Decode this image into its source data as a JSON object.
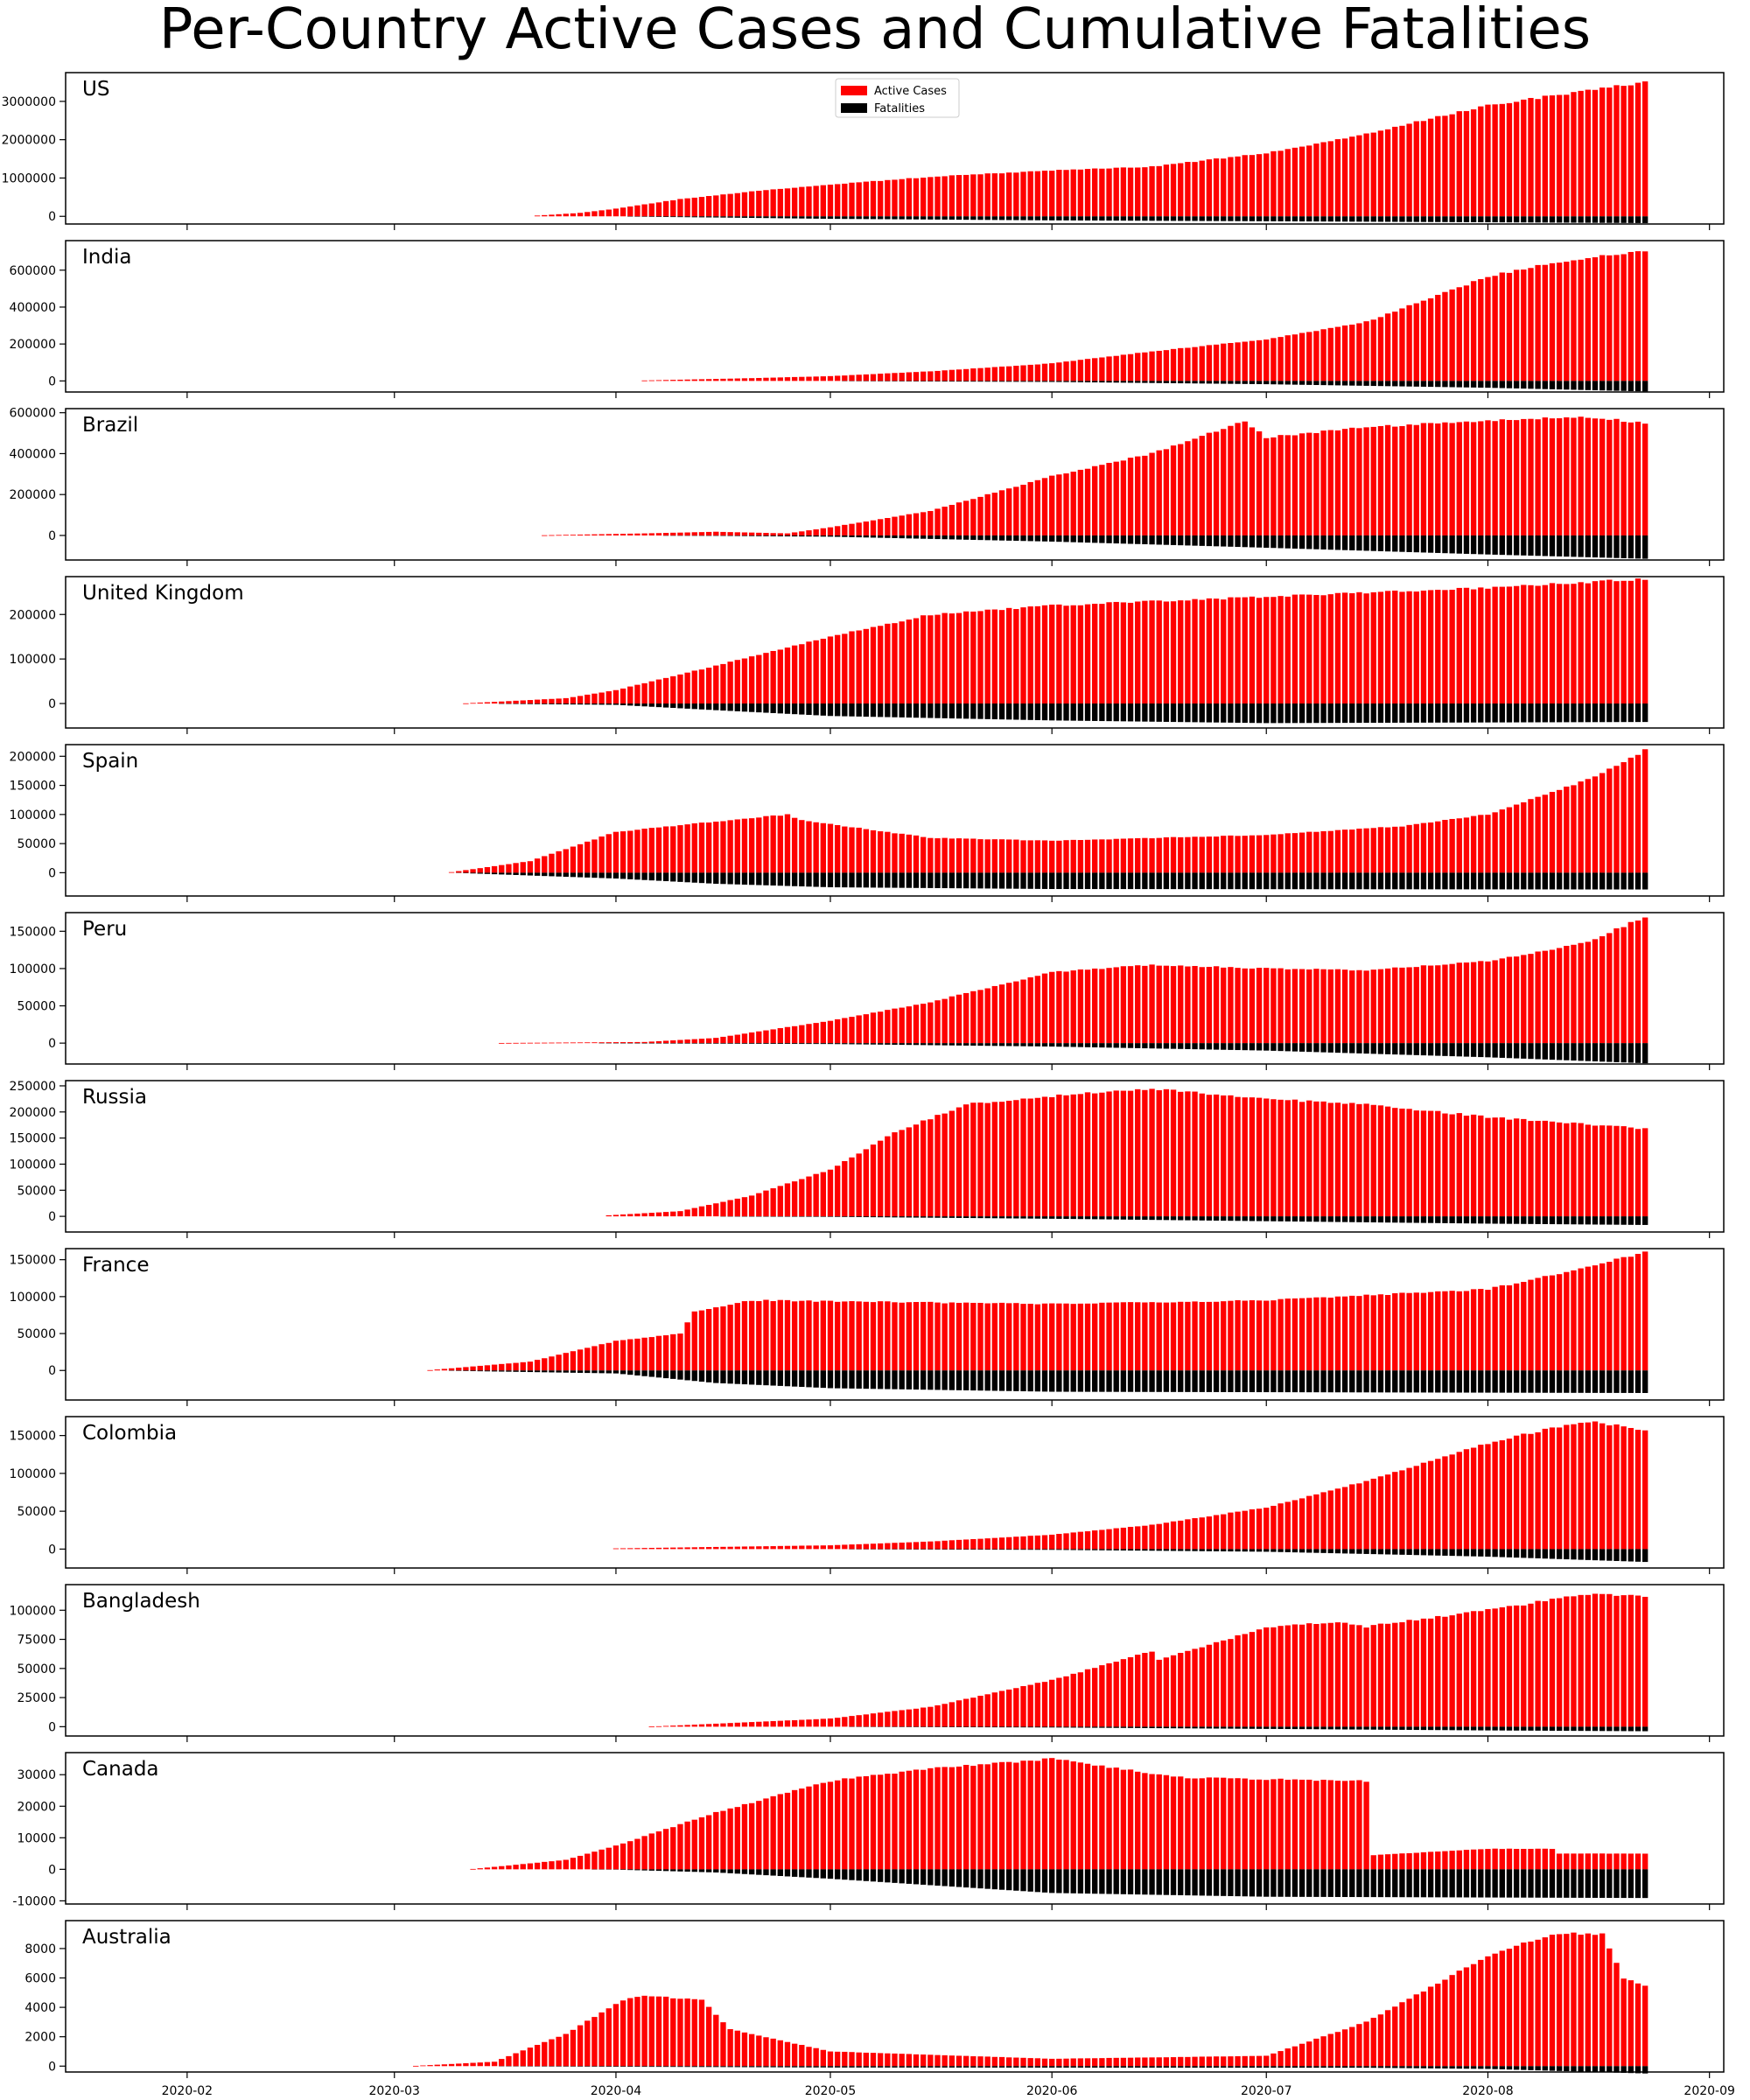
{
  "figure_title": "Per-Country Active Cases and Cumulative Fatalities",
  "colors": {
    "active": "#ff0000",
    "fatal": "#000000",
    "frame": "#000000"
  },
  "chart_data": {
    "type": "bar",
    "layout": "stacked-subplots, shared x axis",
    "x_start": "2020-01-22",
    "x_end": "2020-08-23",
    "xlim": [
      "2020-01-15",
      "2020-09-03"
    ],
    "x_ticks": [
      "2020-02",
      "2020-03",
      "2020-04",
      "2020-05",
      "2020-06",
      "2020-07",
      "2020-08",
      "2020-09"
    ],
    "legend": {
      "location": "top-center of first panel",
      "entries": [
        "Active Cases",
        "Fatalities"
      ]
    },
    "panels": [
      {
        "name": "US",
        "ylim": [
          -200000,
          3750000
        ],
        "yticks": [
          0,
          1000000,
          2000000,
          3000000
        ],
        "start": "2020-03-21",
        "active": [
          [
            "2020-03-21",
            20000
          ],
          [
            "2020-03-27",
            90000
          ],
          [
            "2020-04-01",
            200000
          ],
          [
            "2020-04-10",
            450000
          ],
          [
            "2020-04-20",
            650000
          ],
          [
            "2020-05-01",
            830000
          ],
          [
            "2020-05-15",
            1030000
          ],
          [
            "2020-06-01",
            1200000
          ],
          [
            "2020-06-15",
            1300000
          ],
          [
            "2020-07-01",
            1650000
          ],
          [
            "2020-07-15",
            2150000
          ],
          [
            "2020-08-01",
            2900000
          ],
          [
            "2020-08-23",
            3500000
          ]
        ],
        "fatal": [
          [
            "2020-03-21",
            300
          ],
          [
            "2020-04-01",
            5000
          ],
          [
            "2020-04-15",
            30000
          ],
          [
            "2020-05-01",
            65000
          ],
          [
            "2020-06-01",
            105000
          ],
          [
            "2020-07-01",
            128000
          ],
          [
            "2020-08-01",
            155000
          ],
          [
            "2020-08-23",
            176000
          ]
        ]
      },
      {
        "name": "India",
        "ylim": [
          -60000,
          760000
        ],
        "yticks": [
          0,
          200000,
          400000,
          600000
        ],
        "start": "2020-04-05",
        "active": [
          [
            "2020-04-05",
            2500
          ],
          [
            "2020-04-20",
            15000
          ],
          [
            "2020-05-01",
            26000
          ],
          [
            "2020-05-15",
            52000
          ],
          [
            "2020-06-01",
            95000
          ],
          [
            "2020-06-15",
            160000
          ],
          [
            "2020-07-01",
            225000
          ],
          [
            "2020-07-15",
            320000
          ],
          [
            "2020-08-01",
            565000
          ],
          [
            "2020-08-10",
            640000
          ],
          [
            "2020-08-23",
            705000
          ]
        ],
        "fatal": [
          [
            "2020-04-05",
            100
          ],
          [
            "2020-05-01",
            1200
          ],
          [
            "2020-06-01",
            5400
          ],
          [
            "2020-07-01",
            17800
          ],
          [
            "2020-08-01",
            37000
          ],
          [
            "2020-08-23",
            57000
          ]
        ]
      },
      {
        "name": "Brazil",
        "ylim": [
          -120000,
          620000
        ],
        "yticks": [
          0,
          200000,
          400000,
          600000
        ],
        "start": "2020-03-22",
        "active": [
          [
            "2020-03-22",
            1000
          ],
          [
            "2020-04-05",
            10000
          ],
          [
            "2020-04-15",
            18000
          ],
          [
            "2020-04-25",
            10000
          ],
          [
            "2020-05-01",
            40000
          ],
          [
            "2020-05-15",
            120000
          ],
          [
            "2020-06-01",
            290000
          ],
          [
            "2020-06-15",
            400000
          ],
          [
            "2020-06-28",
            560000
          ],
          [
            "2020-07-01",
            480000
          ],
          [
            "2020-07-15",
            530000
          ],
          [
            "2020-08-01",
            560000
          ],
          [
            "2020-08-15",
            580000
          ],
          [
            "2020-08-23",
            550000
          ]
        ],
        "fatal": [
          [
            "2020-03-22",
            20
          ],
          [
            "2020-04-15",
            1900
          ],
          [
            "2020-05-01",
            6000
          ],
          [
            "2020-06-01",
            30000
          ],
          [
            "2020-07-01",
            60000
          ],
          [
            "2020-08-01",
            93000
          ],
          [
            "2020-08-23",
            114000
          ]
        ]
      },
      {
        "name": "United Kingdom",
        "ylim": [
          -55000,
          285000
        ],
        "yticks": [
          0,
          100000,
          200000
        ],
        "start": "2020-03-11",
        "active": [
          [
            "2020-03-11",
            400
          ],
          [
            "2020-03-25",
            12000
          ],
          [
            "2020-04-01",
            30000
          ],
          [
            "2020-04-15",
            85000
          ],
          [
            "2020-05-01",
            150000
          ],
          [
            "2020-05-15",
            200000
          ],
          [
            "2020-06-01",
            220000
          ],
          [
            "2020-07-01",
            240000
          ],
          [
            "2020-08-01",
            260000
          ],
          [
            "2020-08-23",
            280000
          ]
        ],
        "fatal": [
          [
            "2020-03-11",
            10
          ],
          [
            "2020-04-01",
            3000
          ],
          [
            "2020-04-15",
            15000
          ],
          [
            "2020-05-01",
            28000
          ],
          [
            "2020-06-01",
            38000
          ],
          [
            "2020-07-01",
            44000
          ],
          [
            "2020-08-23",
            41500
          ]
        ]
      },
      {
        "name": "Spain",
        "ylim": [
          -40000,
          220000
        ],
        "yticks": [
          0,
          50000,
          100000,
          150000,
          200000
        ],
        "start": "2020-03-09",
        "active": [
          [
            "2020-03-09",
            1000
          ],
          [
            "2020-03-20",
            20000
          ],
          [
            "2020-04-01",
            70000
          ],
          [
            "2020-04-15",
            88000
          ],
          [
            "2020-04-25",
            100000
          ],
          [
            "2020-04-27",
            90000
          ],
          [
            "2020-05-15",
            60000
          ],
          [
            "2020-06-01",
            55000
          ],
          [
            "2020-07-01",
            65000
          ],
          [
            "2020-07-20",
            80000
          ],
          [
            "2020-08-01",
            100000
          ],
          [
            "2020-08-15",
            160000
          ],
          [
            "2020-08-23",
            210000
          ]
        ],
        "fatal": [
          [
            "2020-03-09",
            20
          ],
          [
            "2020-04-01",
            10000
          ],
          [
            "2020-04-15",
            19000
          ],
          [
            "2020-05-01",
            25000
          ],
          [
            "2020-06-01",
            28000
          ],
          [
            "2020-08-23",
            28800
          ]
        ]
      },
      {
        "name": "Peru",
        "ylim": [
          -28000,
          175000
        ],
        "yticks": [
          0,
          50000,
          100000,
          150000
        ],
        "start": "2020-03-16",
        "active": [
          [
            "2020-03-16",
            200
          ],
          [
            "2020-04-05",
            1500
          ],
          [
            "2020-04-15",
            7000
          ],
          [
            "2020-05-01",
            30000
          ],
          [
            "2020-05-15",
            55000
          ],
          [
            "2020-06-01",
            95000
          ],
          [
            "2020-06-15",
            105000
          ],
          [
            "2020-07-01",
            100000
          ],
          [
            "2020-07-15",
            98000
          ],
          [
            "2020-08-01",
            110000
          ],
          [
            "2020-08-15",
            135000
          ],
          [
            "2020-08-23",
            170000
          ]
        ],
        "fatal": [
          [
            "2020-03-16",
            5
          ],
          [
            "2020-05-01",
            1200
          ],
          [
            "2020-06-01",
            4600
          ],
          [
            "2020-07-01",
            10000
          ],
          [
            "2020-08-01",
            19000
          ],
          [
            "2020-08-23",
            27000
          ]
        ]
      },
      {
        "name": "Russia",
        "ylim": [
          -30000,
          260000
        ],
        "yticks": [
          0,
          50000,
          100000,
          150000,
          200000,
          250000
        ],
        "start": "2020-03-31",
        "active": [
          [
            "2020-03-31",
            2000
          ],
          [
            "2020-04-10",
            10000
          ],
          [
            "2020-04-20",
            40000
          ],
          [
            "2020-05-01",
            90000
          ],
          [
            "2020-05-10",
            160000
          ],
          [
            "2020-05-20",
            215000
          ],
          [
            "2020-06-01",
            230000
          ],
          [
            "2020-06-15",
            245000
          ],
          [
            "2020-07-01",
            225000
          ],
          [
            "2020-07-15",
            215000
          ],
          [
            "2020-08-01",
            190000
          ],
          [
            "2020-08-23",
            168000
          ]
        ],
        "fatal": [
          [
            "2020-03-31",
            20
          ],
          [
            "2020-05-01",
            1000
          ],
          [
            "2020-06-01",
            4600
          ],
          [
            "2020-07-01",
            9300
          ],
          [
            "2020-08-01",
            14000
          ],
          [
            "2020-08-23",
            16500
          ]
        ]
      },
      {
        "name": "France",
        "ylim": [
          -40000,
          165000
        ],
        "yticks": [
          0,
          50000,
          100000,
          150000
        ],
        "start": "2020-03-06",
        "active": [
          [
            "2020-03-06",
            500
          ],
          [
            "2020-03-20",
            12000
          ],
          [
            "2020-04-01",
            40000
          ],
          [
            "2020-04-10",
            50000
          ],
          [
            "2020-04-12",
            80000
          ],
          [
            "2020-04-20",
            95000
          ],
          [
            "2020-05-15",
            92000
          ],
          [
            "2020-06-01",
            90000
          ],
          [
            "2020-07-01",
            95000
          ],
          [
            "2020-08-01",
            110000
          ],
          [
            "2020-08-15",
            140000
          ],
          [
            "2020-08-23",
            160000
          ]
        ],
        "fatal": [
          [
            "2020-03-06",
            10
          ],
          [
            "2020-04-01",
            4000
          ],
          [
            "2020-04-15",
            17000
          ],
          [
            "2020-05-01",
            24000
          ],
          [
            "2020-06-01",
            28800
          ],
          [
            "2020-08-23",
            30500
          ]
        ]
      },
      {
        "name": "Colombia",
        "ylim": [
          -25000,
          175000
        ],
        "yticks": [
          0,
          50000,
          100000,
          150000
        ],
        "start": "2020-04-01",
        "active": [
          [
            "2020-04-01",
            900
          ],
          [
            "2020-05-01",
            5000
          ],
          [
            "2020-05-15",
            10000
          ],
          [
            "2020-06-01",
            19000
          ],
          [
            "2020-06-15",
            32000
          ],
          [
            "2020-07-01",
            55000
          ],
          [
            "2020-07-15",
            90000
          ],
          [
            "2020-08-01",
            140000
          ],
          [
            "2020-08-10",
            160000
          ],
          [
            "2020-08-16",
            168000
          ],
          [
            "2020-08-23",
            157000
          ]
        ],
        "fatal": [
          [
            "2020-04-01",
            20
          ],
          [
            "2020-05-01",
            300
          ],
          [
            "2020-06-01",
            1000
          ],
          [
            "2020-07-01",
            3500
          ],
          [
            "2020-08-01",
            10000
          ],
          [
            "2020-08-23",
            17000
          ]
        ]
      },
      {
        "name": "Bangladesh",
        "ylim": [
          -8000,
          122000
        ],
        "yticks": [
          0,
          25000,
          50000,
          75000,
          100000
        ],
        "start": "2020-04-06",
        "active": [
          [
            "2020-04-06",
            100
          ],
          [
            "2020-05-01",
            7000
          ],
          [
            "2020-05-15",
            17000
          ],
          [
            "2020-06-01",
            40000
          ],
          [
            "2020-06-15",
            65000
          ],
          [
            "2020-06-16",
            58000
          ],
          [
            "2020-07-01",
            85000
          ],
          [
            "2020-07-10",
            90000
          ],
          [
            "2020-07-15",
            86000
          ],
          [
            "2020-08-01",
            100000
          ],
          [
            "2020-08-15",
            114000
          ],
          [
            "2020-08-23",
            112000
          ]
        ],
        "fatal": [
          [
            "2020-04-06",
            10
          ],
          [
            "2020-05-01",
            180
          ],
          [
            "2020-06-01",
            700
          ],
          [
            "2020-07-01",
            1900
          ],
          [
            "2020-08-01",
            3200
          ],
          [
            "2020-08-23",
            3900
          ]
        ]
      },
      {
        "name": "Canada",
        "ylim": [
          -11000,
          37000
        ],
        "yticks": [
          -10000,
          0,
          10000,
          20000,
          30000
        ],
        "start": "2020-03-12",
        "active": [
          [
            "2020-03-12",
            120
          ],
          [
            "2020-03-25",
            3000
          ],
          [
            "2020-04-01",
            7500
          ],
          [
            "2020-04-15",
            18000
          ],
          [
            "2020-05-01",
            28000
          ],
          [
            "2020-05-15",
            32000
          ],
          [
            "2020-06-01",
            35000
          ],
          [
            "2020-06-10",
            32000
          ],
          [
            "2020-06-20",
            29000
          ],
          [
            "2020-07-15",
            28000
          ],
          [
            "2020-07-16",
            4500
          ],
          [
            "2020-08-01",
            6500
          ],
          [
            "2020-08-10",
            6500
          ],
          [
            "2020-08-11",
            5000
          ],
          [
            "2020-08-23",
            5000
          ]
        ],
        "fatal": [
          [
            "2020-03-12",
            1
          ],
          [
            "2020-04-01",
            100
          ],
          [
            "2020-04-15",
            1000
          ],
          [
            "2020-05-01",
            3000
          ],
          [
            "2020-06-01",
            7500
          ],
          [
            "2020-07-01",
            8700
          ],
          [
            "2020-08-23",
            9100
          ]
        ]
      },
      {
        "name": "Australia",
        "ylim": [
          -400,
          9900
        ],
        "yticks": [
          0,
          2000,
          4000,
          6000,
          8000
        ],
        "start": "2020-03-04",
        "active": [
          [
            "2020-03-04",
            20
          ],
          [
            "2020-03-15",
            300
          ],
          [
            "2020-03-25",
            2200
          ],
          [
            "2020-04-02",
            4500
          ],
          [
            "2020-04-05",
            4800
          ],
          [
            "2020-04-13",
            4500
          ],
          [
            "2020-04-17",
            2500
          ],
          [
            "2020-05-01",
            1000
          ],
          [
            "2020-06-01",
            500
          ],
          [
            "2020-07-01",
            700
          ],
          [
            "2020-07-15",
            3000
          ],
          [
            "2020-08-01",
            7500
          ],
          [
            "2020-08-10",
            9000
          ],
          [
            "2020-08-17",
            9000
          ],
          [
            "2020-08-20",
            6000
          ],
          [
            "2020-08-23",
            5500
          ]
        ],
        "fatal": [
          [
            "2020-03-04",
            1
          ],
          [
            "2020-04-15",
            63
          ],
          [
            "2020-05-01",
            93
          ],
          [
            "2020-07-15",
            110
          ],
          [
            "2020-08-01",
            190
          ],
          [
            "2020-08-23",
            500
          ]
        ]
      }
    ]
  }
}
